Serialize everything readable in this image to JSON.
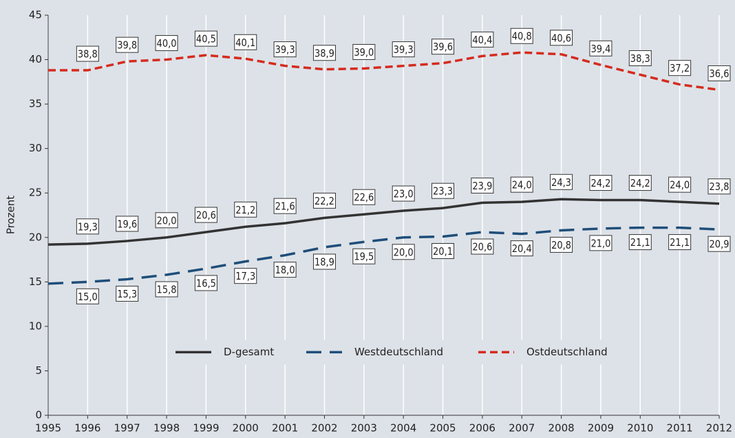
{
  "chart_data": {
    "type": "line",
    "y_label": "Prozent",
    "x": [
      1995,
      1996,
      1997,
      1998,
      1999,
      2000,
      2001,
      2002,
      2003,
      2004,
      2005,
      2006,
      2007,
      2008,
      2009,
      2010,
      2011,
      2012
    ],
    "xlim": [
      1995,
      2012
    ],
    "xticks": [
      1995,
      1996,
      1997,
      1998,
      1999,
      2000,
      2001,
      2002,
      2003,
      2004,
      2005,
      2006,
      2007,
      2008,
      2009,
      2010,
      2011,
      2012
    ],
    "ylim": [
      0,
      45
    ],
    "yticks": [
      0,
      5,
      10,
      15,
      20,
      25,
      30,
      35,
      40,
      45
    ],
    "grid": true,
    "legend": "lower center",
    "series": [
      {
        "name": "D-gesamt",
        "color": "#333333",
        "dash": "solid",
        "values": [
          19.2,
          19.3,
          19.6,
          20.0,
          20.6,
          21.2,
          21.6,
          22.2,
          22.6,
          23.0,
          23.3,
          23.9,
          24.0,
          24.3,
          24.2,
          24.2,
          24.0,
          23.8
        ],
        "value_labels": [
          null,
          "19,3",
          "19,6",
          "20,0",
          "20,6",
          "21,2",
          "21,6",
          "22,2",
          "22,6",
          "23,0",
          "23,3",
          "23,9",
          "24,0",
          "24,3",
          "24,2",
          "24,2",
          "24,0",
          "23,8"
        ]
      },
      {
        "name": "Westdeutschland",
        "color": "#1f4e79",
        "dash": "long",
        "values": [
          14.8,
          15.0,
          15.3,
          15.8,
          16.5,
          17.3,
          18.0,
          18.9,
          19.5,
          20.0,
          20.1,
          20.6,
          20.4,
          20.8,
          21.0,
          21.1,
          21.1,
          20.9
        ],
        "value_labels": [
          null,
          "15,0",
          "15,3",
          "15,8",
          "16,5",
          "17,3",
          "18,0",
          "18,9",
          "19,5",
          "20,0",
          "20,1",
          "20,6",
          "20,4",
          "20,8",
          "21,0",
          "21,1",
          "21,1",
          "20,9"
        ]
      },
      {
        "name": "Ostdeutschland",
        "color": "#d52b1e",
        "dash": "short",
        "values": [
          38.8,
          38.8,
          39.8,
          40.0,
          40.5,
          40.1,
          39.3,
          38.9,
          39.0,
          39.3,
          39.6,
          40.4,
          40.8,
          40.6,
          39.4,
          38.3,
          37.2,
          36.6
        ],
        "value_labels": [
          null,
          "38,8",
          "39,8",
          "40,0",
          "40,5",
          "40,1",
          "39,3",
          "38,9",
          "39,0",
          "39,3",
          "39,6",
          "40,4",
          "40,8",
          "40,6",
          "39,4",
          "38,3",
          "37,2",
          "36,6"
        ]
      }
    ]
  }
}
